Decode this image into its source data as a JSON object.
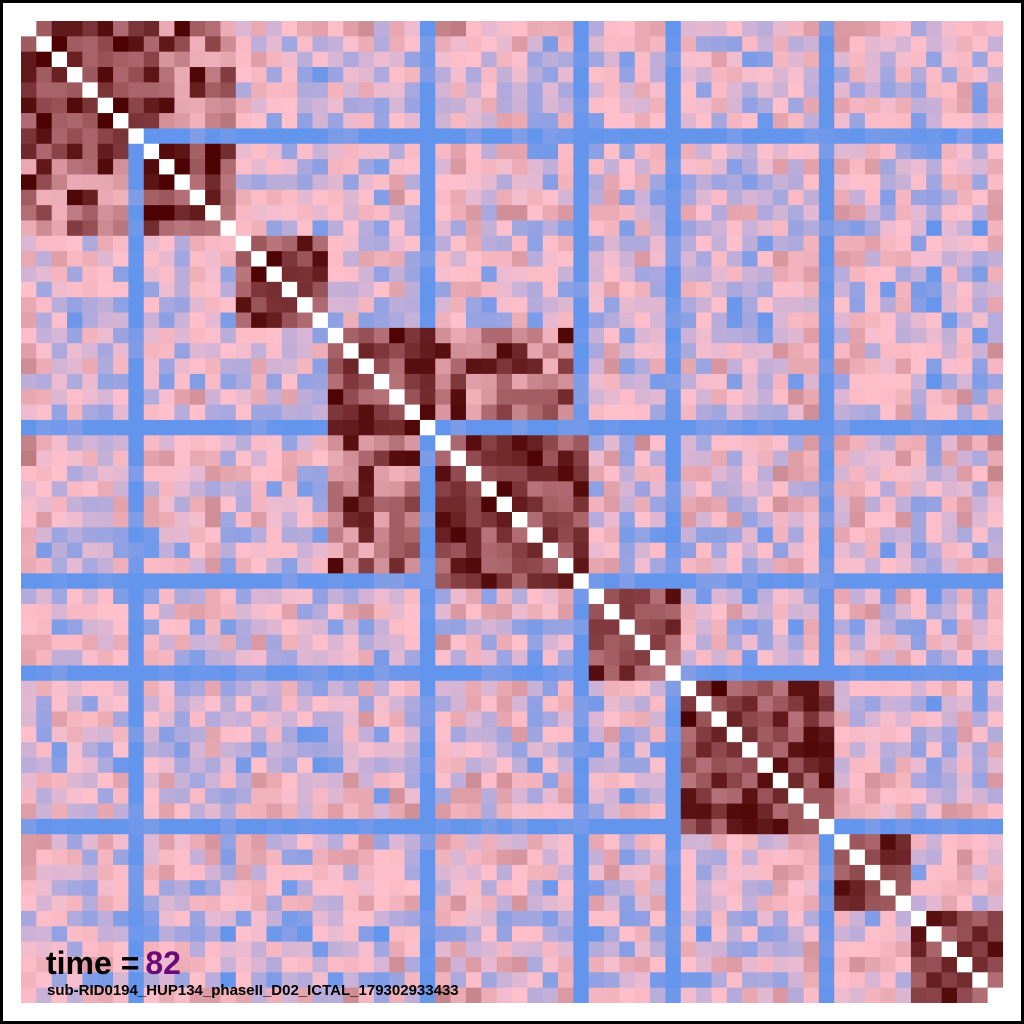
{
  "chart_data": {
    "type": "heatmap",
    "n": 64,
    "blocks": [
      {
        "start": 0,
        "end": 7
      },
      {
        "start": 8,
        "end": 13
      },
      {
        "start": 14,
        "end": 19
      },
      {
        "start": 20,
        "end": 26
      },
      {
        "start": 27,
        "end": 36
      },
      {
        "start": 37,
        "end": 42
      },
      {
        "start": 43,
        "end": 52
      },
      {
        "start": 53,
        "end": 57
      },
      {
        "start": 58,
        "end": 63
      }
    ],
    "strong_offblock_pairs": [
      [
        43,
        57
      ],
      [
        43,
        63
      ],
      [
        53,
        63
      ],
      [
        27,
        36
      ],
      [
        20,
        27
      ],
      [
        0,
        8
      ]
    ],
    "negative_stripes": [
      7,
      26,
      36,
      42,
      52
    ],
    "color_scale": [
      "#6495ed",
      "#ffc0cb",
      "#4a0000"
    ],
    "diagonal_color": "#ffffff",
    "grid": false
  },
  "overlay": {
    "time_label": "time =",
    "time_value": "82",
    "subject_id": "sub-RID0194_HUP134_phaseII_D02_ICTAL_179302933433"
  }
}
